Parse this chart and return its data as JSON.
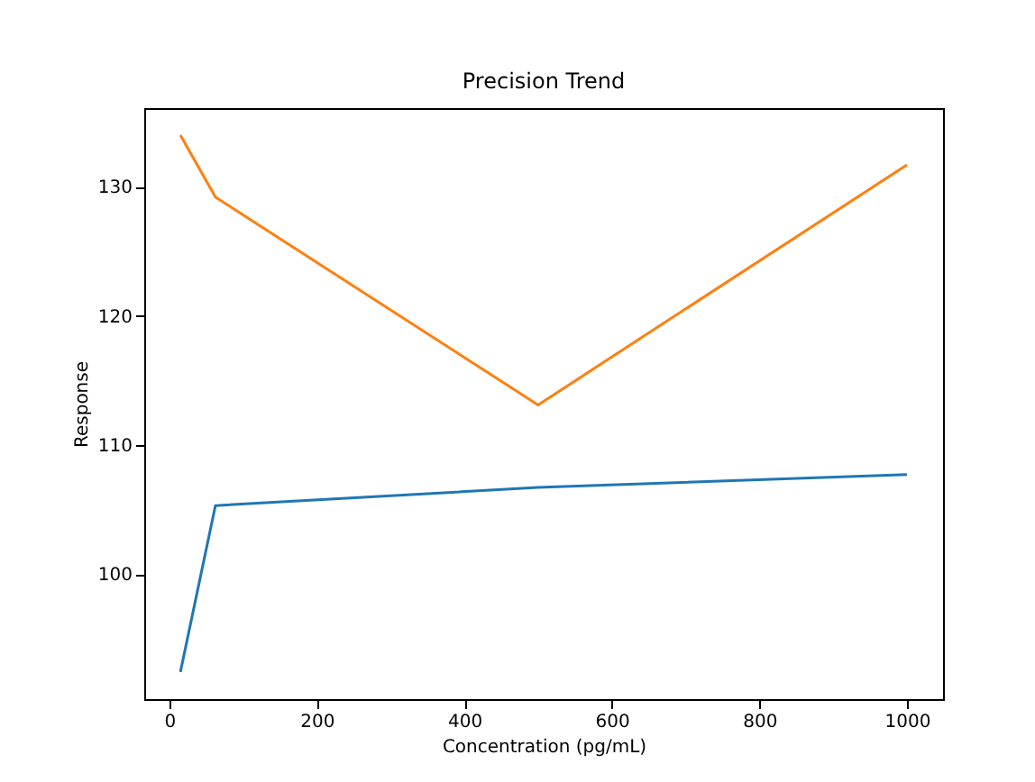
{
  "chart_data": {
    "type": "line",
    "title": "Precision Trend",
    "xlabel": "Concentration (pg/mL)",
    "ylabel": "Response",
    "x": [
      15,
      62.5,
      500,
      1000
    ],
    "series": [
      {
        "color": "#1f77b4",
        "values": [
          92.4,
          105.3,
          106.7,
          107.7
        ]
      },
      {
        "color": "#ff7f0e",
        "values": [
          134.0,
          129.2,
          113.1,
          131.7
        ]
      }
    ],
    "xlim": [
      -34,
      1049
    ],
    "ylim": [
      90.3,
      136.1
    ],
    "xticks": [
      0,
      200,
      400,
      600,
      800,
      1000
    ],
    "yticks": [
      100,
      110,
      120,
      130
    ],
    "grid": false,
    "legend": false,
    "marker": "none",
    "line_style": "solid"
  }
}
